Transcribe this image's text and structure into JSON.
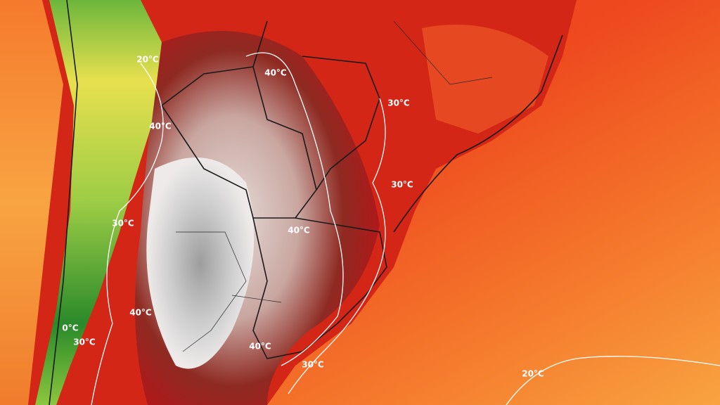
{
  "contour_labels": [
    "20°C",
    "40°C",
    "30°C",
    "40°C",
    "30°C",
    "30°C",
    "40°C",
    "40°C",
    "0°C",
    "30°C",
    "40°C",
    "30°C",
    "20°C"
  ]
}
